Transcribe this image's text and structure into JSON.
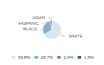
{
  "chart_data": {
    "type": "pie",
    "categories": [
      "WHITE",
      "BLACK",
      "HISPANIC",
      "ASIAN"
    ],
    "values": [
      66.8,
      28.7,
      2.9,
      1.5
    ],
    "value_labels": [
      "66.8%",
      "28.7%",
      "2.9%",
      "1.5%"
    ],
    "colors": [
      "#d9e4f0",
      "#8ab0c8",
      "#5a8aa8",
      "#2e5f7e"
    ],
    "legend": "bottom"
  }
}
